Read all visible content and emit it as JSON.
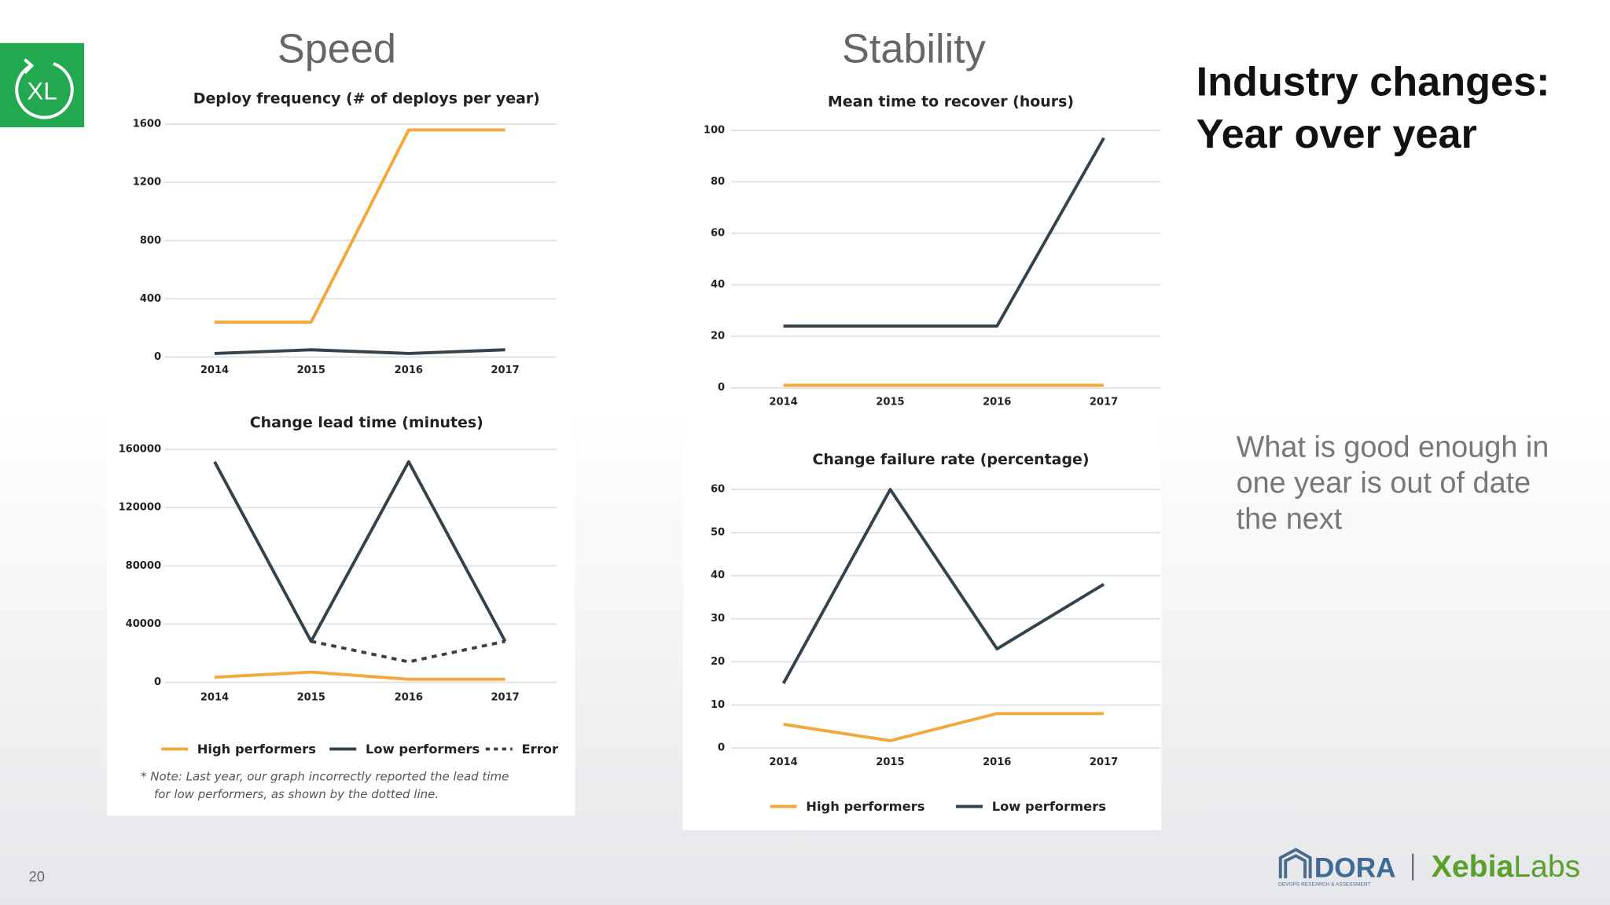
{
  "slide": {
    "headings": [
      "Speed",
      "Stability"
    ],
    "title": [
      "Industry changes:",
      "Year over year"
    ],
    "body": [
      "What is good enough in",
      "one year is out of date",
      "the next"
    ],
    "page_number": "20",
    "logo_text": "XL",
    "dora": {
      "name": "DORA",
      "subtitle": "DEVOPS RESEARCH & ASSESSMENT"
    },
    "brand": [
      "Xebia",
      "Labs"
    ]
  },
  "chart_data": [
    {
      "type": "line",
      "title": "Deploy frequency (# of deploys per year)",
      "categories": [
        "2014",
        "2015",
        "2016",
        "2017"
      ],
      "series": [
        {
          "color": "#f3a83b",
          "values": [
            240,
            240,
            1560,
            1560
          ]
        },
        {
          "color": "#34434b",
          "values": [
            25,
            50,
            25,
            50
          ]
        }
      ],
      "ylim": [
        0,
        1600
      ],
      "yticks": [
        0,
        400,
        800,
        1200,
        1600
      ],
      "grid": true
    },
    {
      "type": "line",
      "title": "Change lead time (minutes)",
      "categories": [
        "2014",
        "2015",
        "2016",
        "2017"
      ],
      "series": [
        {
          "name": "High performers",
          "color": "#f3a83b",
          "values": [
            3500,
            7000,
            2100,
            2100
          ]
        },
        {
          "name": "Low performers",
          "color": "#34434b",
          "values": [
            151500,
            28200,
            151500,
            28200
          ]
        },
        {
          "name": "Error",
          "color": "#34434b",
          "style": "dotted",
          "values": [
            null,
            28200,
            14100,
            28200
          ]
        }
      ],
      "ylim": [
        0,
        160000
      ],
      "yticks": [
        0,
        40000,
        80000,
        120000,
        160000
      ],
      "grid": true,
      "legend": "bottom",
      "note": [
        "* Note: Last year, our graph incorrectly reported the lead time",
        "for low performers, as shown by the dotted line."
      ]
    },
    {
      "type": "line",
      "title": "Mean time to recover (hours)",
      "categories": [
        "2014",
        "2015",
        "2016",
        "2017"
      ],
      "series": [
        {
          "color": "#f3a83b",
          "values": [
            1,
            1,
            1,
            1
          ]
        },
        {
          "color": "#34434b",
          "values": [
            24,
            24,
            24,
            97
          ]
        }
      ],
      "ylim": [
        0,
        100
      ],
      "yticks": [
        0,
        20,
        40,
        60,
        80,
        100
      ],
      "grid": true
    },
    {
      "type": "line",
      "title": "Change failure rate (percentage)",
      "categories": [
        "2014",
        "2015",
        "2016",
        "2017"
      ],
      "series": [
        {
          "name": "High performers",
          "color": "#f3a83b",
          "values": [
            5.5,
            1.7,
            8,
            8
          ]
        },
        {
          "name": "Low performers",
          "color": "#34434b",
          "values": [
            15,
            60,
            23,
            38
          ]
        }
      ],
      "ylim": [
        0,
        60
      ],
      "yticks": [
        0,
        10,
        20,
        30,
        40,
        50,
        60
      ],
      "grid": true,
      "legend": "bottom"
    }
  ]
}
